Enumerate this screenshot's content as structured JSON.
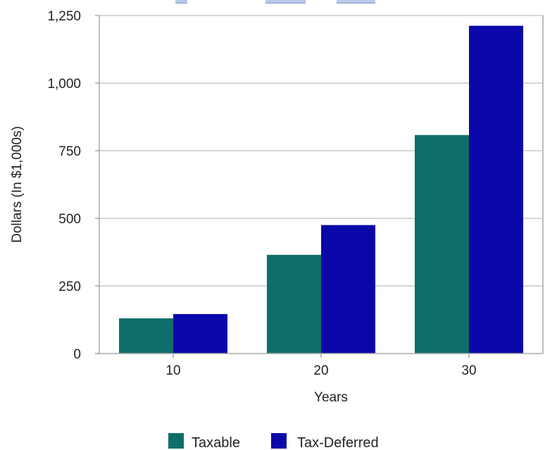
{
  "chart_data": {
    "type": "bar",
    "categories": [
      "10",
      "20",
      "30"
    ],
    "series": [
      {
        "name": "Taxable",
        "values": [
          130,
          365,
          808
        ]
      },
      {
        "name": "Tax-Deferred",
        "values": [
          146,
          475,
          1212
        ]
      }
    ],
    "xlabel": "Years",
    "ylabel": "Dollars (In $1,000s)",
    "ylim": [
      0,
      1250
    ],
    "yticks": [
      0,
      250,
      500,
      750,
      1000,
      1250
    ],
    "ytick_labels": [
      "0",
      "250",
      "500",
      "750",
      "1,000",
      "1,250"
    ],
    "grid": true,
    "legend_position": "bottom",
    "colors": {
      "Taxable": "#0f6e6a",
      "Tax-Deferred": "#0a08a8",
      "grid": "#c8c8c8",
      "axis": "#a8a8a8"
    }
  }
}
